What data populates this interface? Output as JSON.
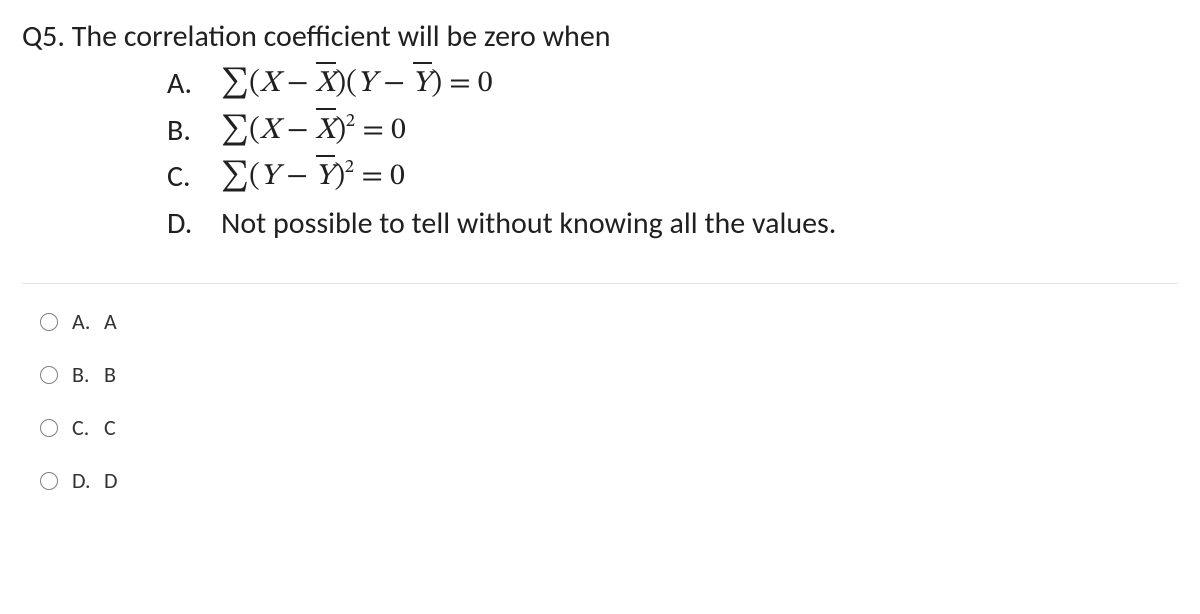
{
  "question": {
    "number": "Q5.",
    "text": "The correlation coefficient will be zero when"
  },
  "options": [
    {
      "label": "A.",
      "expr_html": "<span class=\"sigma\">∑</span>(<span class=\"var\">X</span> − <span class=\"xbar\">X</span>)(<span class=\"var\">Y</span> − <span class=\"ybar\">Y</span>) = 0"
    },
    {
      "label": "B.",
      "expr_html": "<span class=\"sigma\">∑</span>(<span class=\"var\">X</span> − <span class=\"xbar\">X</span>)<span class=\"sup\">2</span> = 0"
    },
    {
      "label": "C.",
      "expr_html": "<span class=\"sigma\">∑</span>(<span class=\"var\">Y</span> − <span class=\"ybar\">Y</span>)<span class=\"sup\">2</span> = 0"
    },
    {
      "label": "D.",
      "text": "Not possible to tell without knowing all the values."
    }
  ],
  "answers": [
    {
      "label": "A.",
      "value": "A"
    },
    {
      "label": "B.",
      "value": "B"
    },
    {
      "label": "C.",
      "value": "C"
    },
    {
      "label": "D.",
      "value": "D"
    }
  ],
  "colors": {
    "text": "#202020",
    "divider": "#e4e4e4",
    "radio_border": "#808080",
    "background": "#ffffff"
  },
  "typography": {
    "question_fontsize": 30,
    "answer_fontsize": 22,
    "font_family": "Calibri"
  }
}
